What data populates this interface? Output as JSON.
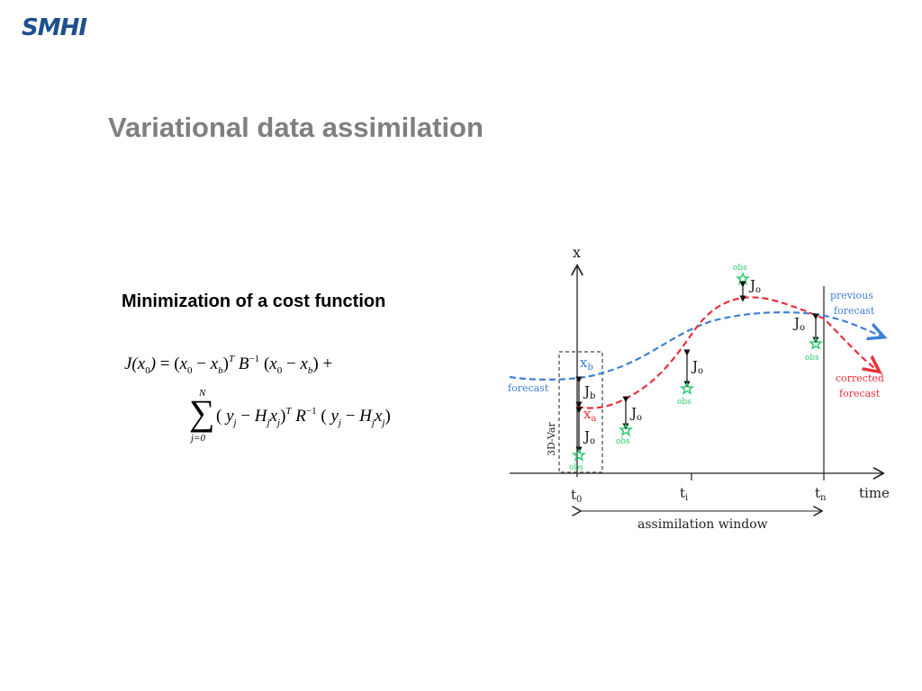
{
  "logo": {
    "text": "SMHI"
  },
  "title": "Variational data assimilation",
  "subtitle": "Minimization of a cost function",
  "formula": {
    "line1": "J(x0) = (x0 − xb)^T B^−1 (x0 − xb) +",
    "line2": "Σ_{j=0}^{N} (yj − Hj xj)^T R^−1 (yj − Hj xj)"
  },
  "diagram": {
    "y_axis_label": "x",
    "x_axis_label": "time",
    "ticks": [
      "t0",
      "ti",
      "tn"
    ],
    "window_label": "assimilation window",
    "box_label": "3D-Var",
    "curves": {
      "forecast": "forecast",
      "previous_forecast": [
        "previous",
        "forecast"
      ],
      "corrected_forecast": [
        "corrected",
        "forecast"
      ]
    },
    "state_labels": {
      "background": "xb",
      "analysis": "xa"
    },
    "cost_labels": {
      "Jb": "Jb",
      "Jo": "Jo"
    },
    "obs_label": "obs",
    "colors": {
      "blue": "#3f7fd8",
      "red": "#e8313a",
      "obs": "#2ecc71",
      "box": "#444444"
    }
  }
}
